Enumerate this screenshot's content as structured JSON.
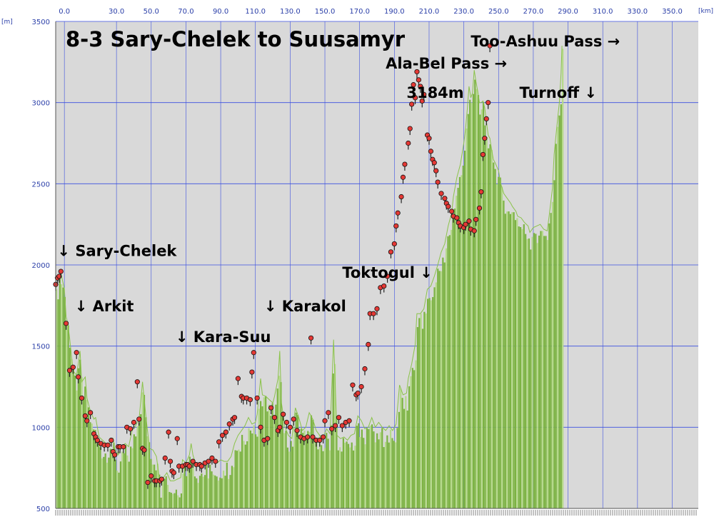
{
  "chart_data": {
    "type": "area",
    "title": "8-3 Sary-Chelek to Suusamyr",
    "x_unit": "[km]",
    "y_unit": "[m]",
    "xlim": [
      -5,
      365
    ],
    "ylim": [
      500,
      3500
    ],
    "x_ticks": [
      "0.0",
      "30.0",
      "50.0",
      "70.0",
      "90.0",
      "110.0",
      "130.0",
      "150.0",
      "170.0",
      "190.0",
      "210.0",
      "230.0",
      "250.0",
      "270.0",
      "290.0",
      "310.0",
      "330.0",
      "350.0"
    ],
    "x_tick_values": [
      0,
      30,
      50,
      70,
      90,
      110,
      130,
      150,
      170,
      190,
      210,
      230,
      250,
      270,
      290,
      310,
      330,
      350
    ],
    "y_ticks": [
      "500",
      "1000",
      "1500",
      "2000",
      "2500",
      "3000",
      "3500"
    ],
    "y_tick_values": [
      500,
      1000,
      1500,
      2000,
      2500,
      3000,
      3500
    ],
    "grid": true,
    "colors": {
      "fill": "#7cb342",
      "fill_light": "#b5d98a",
      "grid": "#3b4fe0",
      "plot_bg": "#d9d9d9",
      "marker": "#e53935"
    },
    "profile": [
      [
        -5,
        1850
      ],
      [
        -4,
        1900
      ],
      [
        -2,
        1950
      ],
      [
        0,
        1850
      ],
      [
        1,
        1680
      ],
      [
        2,
        1640
      ],
      [
        3,
        1550
      ],
      [
        5,
        1350
      ],
      [
        7,
        1320
      ],
      [
        8,
        1390
      ],
      [
        9,
        1470
      ],
      [
        10,
        1280
      ],
      [
        12,
        1310
      ],
      [
        13,
        1180
      ],
      [
        15,
        1100
      ],
      [
        17,
        1050
      ],
      [
        18,
        1060
      ],
      [
        20,
        940
      ],
      [
        22,
        920
      ],
      [
        24,
        900
      ],
      [
        26,
        900
      ],
      [
        28,
        930
      ],
      [
        29,
        870
      ],
      [
        31,
        830
      ],
      [
        33,
        880
      ],
      [
        35,
        900
      ],
      [
        37,
        880
      ],
      [
        39,
        980
      ],
      [
        41,
        1010
      ],
      [
        43,
        1050
      ],
      [
        45,
        1280
      ],
      [
        47,
        1060
      ],
      [
        49,
        870
      ],
      [
        51,
        860
      ],
      [
        53,
        820
      ],
      [
        55,
        660
      ],
      [
        57,
        690
      ],
      [
        59,
        720
      ],
      [
        61,
        670
      ],
      [
        63,
        670
      ],
      [
        65,
        680
      ],
      [
        67,
        690
      ],
      [
        68,
        800
      ],
      [
        70,
        780
      ],
      [
        72,
        830
      ],
      [
        73,
        900
      ],
      [
        74,
        830
      ],
      [
        76,
        760
      ],
      [
        78,
        780
      ],
      [
        80,
        770
      ],
      [
        82,
        780
      ],
      [
        84,
        790
      ],
      [
        86,
        800
      ],
      [
        88,
        780
      ],
      [
        90,
        800
      ],
      [
        92,
        790
      ],
      [
        94,
        790
      ],
      [
        96,
        820
      ],
      [
        98,
        900
      ],
      [
        100,
        950
      ],
      [
        102,
        980
      ],
      [
        104,
        1010
      ],
      [
        106,
        1060
      ],
      [
        108,
        1020
      ],
      [
        110,
        1030
      ],
      [
        111,
        1080
      ],
      [
        113,
        1300
      ],
      [
        114,
        1200
      ],
      [
        116,
        1190
      ],
      [
        118,
        1170
      ],
      [
        120,
        1150
      ],
      [
        121,
        1190
      ],
      [
        123,
        1300
      ],
      [
        124,
        1470
      ],
      [
        125,
        1150
      ],
      [
        127,
        1000
      ],
      [
        129,
        950
      ],
      [
        131,
        930
      ],
      [
        133,
        1120
      ],
      [
        135,
        1060
      ],
      [
        137,
        980
      ],
      [
        139,
        1000
      ],
      [
        141,
        1090
      ],
      [
        143,
        1050
      ],
      [
        145,
        980
      ],
      [
        147,
        950
      ],
      [
        149,
        940
      ],
      [
        151,
        990
      ],
      [
        153,
        960
      ],
      [
        155,
        1540
      ],
      [
        157,
        950
      ],
      [
        159,
        930
      ],
      [
        161,
        940
      ],
      [
        163,
        920
      ],
      [
        165,
        950
      ],
      [
        167,
        960
      ],
      [
        169,
        1070
      ],
      [
        171,
        1040
      ],
      [
        173,
        990
      ],
      [
        175,
        1000
      ],
      [
        177,
        1060
      ],
      [
        179,
        1000
      ],
      [
        181,
        1030
      ],
      [
        183,
        1000
      ],
      [
        185,
        980
      ],
      [
        187,
        1010
      ],
      [
        189,
        980
      ],
      [
        191,
        1020
      ],
      [
        193,
        1260
      ],
      [
        195,
        1200
      ],
      [
        197,
        1210
      ],
      [
        198,
        1300
      ],
      [
        200,
        1390
      ],
      [
        202,
        1510
      ],
      [
        203,
        1700
      ],
      [
        205,
        1700
      ],
      [
        207,
        1730
      ],
      [
        209,
        1850
      ],
      [
        211,
        1870
      ],
      [
        213,
        1930
      ],
      [
        215,
        2000
      ],
      [
        217,
        2080
      ],
      [
        219,
        2130
      ],
      [
        221,
        2240
      ],
      [
        223,
        2320
      ],
      [
        224,
        2420
      ],
      [
        226,
        2540
      ],
      [
        228,
        2620
      ],
      [
        230,
        2750
      ],
      [
        231,
        2840
      ],
      [
        232,
        2960
      ],
      [
        233,
        3100
      ],
      [
        234,
        3030
      ],
      [
        235,
        3060
      ],
      [
        236,
        3200
      ],
      [
        237,
        3130
      ],
      [
        238,
        3070
      ],
      [
        239,
        3000
      ],
      [
        240,
        3000
      ],
      [
        241,
        3010
      ],
      [
        242,
        2970
      ],
      [
        244,
        2800
      ],
      [
        245,
        2780
      ],
      [
        246,
        2710
      ],
      [
        247,
        2650
      ],
      [
        248,
        2630
      ],
      [
        250,
        2580
      ],
      [
        251,
        2510
      ],
      [
        253,
        2440
      ],
      [
        255,
        2410
      ],
      [
        257,
        2380
      ],
      [
        258,
        2360
      ],
      [
        260,
        2330
      ],
      [
        261,
        2300
      ],
      [
        263,
        2290
      ],
      [
        265,
        2260
      ],
      [
        267,
        2240
      ],
      [
        268,
        2200
      ],
      [
        270,
        2230
      ],
      [
        272,
        2240
      ],
      [
        274,
        2250
      ],
      [
        276,
        2220
      ],
      [
        278,
        2210
      ],
      [
        279,
        2290
      ],
      [
        281,
        2470
      ],
      [
        282,
        2680
      ],
      [
        283,
        2790
      ],
      [
        284,
        2900
      ],
      [
        285,
        3000
      ],
      [
        286,
        3180
      ],
      [
        286.5,
        3350
      ]
    ],
    "markers": [
      [
        -5,
        1880
      ],
      [
        -4,
        1920
      ],
      [
        -3,
        1930
      ],
      [
        -2,
        1960
      ],
      [
        1,
        1640
      ],
      [
        3,
        1350
      ],
      [
        5,
        1370
      ],
      [
        7,
        1460
      ],
      [
        8,
        1310
      ],
      [
        10,
        1180
      ],
      [
        12,
        1070
      ],
      [
        13,
        1040
      ],
      [
        15,
        1090
      ],
      [
        17,
        960
      ],
      [
        18,
        940
      ],
      [
        19,
        920
      ],
      [
        21,
        900
      ],
      [
        23,
        890
      ],
      [
        25,
        890
      ],
      [
        27,
        920
      ],
      [
        28,
        850
      ],
      [
        29,
        830
      ],
      [
        31,
        880
      ],
      [
        32,
        880
      ],
      [
        34,
        880
      ],
      [
        36,
        1000
      ],
      [
        38,
        990
      ],
      [
        40,
        1030
      ],
      [
        42,
        1280
      ],
      [
        43,
        1050
      ],
      [
        45,
        870
      ],
      [
        46,
        860
      ],
      [
        48,
        660
      ],
      [
        50,
        700
      ],
      [
        52,
        670
      ],
      [
        53,
        670
      ],
      [
        55,
        670
      ],
      [
        56,
        680
      ],
      [
        58,
        810
      ],
      [
        60,
        970
      ],
      [
        61,
        790
      ],
      [
        62,
        730
      ],
      [
        63,
        720
      ],
      [
        65,
        930
      ],
      [
        66,
        760
      ],
      [
        68,
        760
      ],
      [
        70,
        770
      ],
      [
        71,
        770
      ],
      [
        72,
        760
      ],
      [
        74,
        790
      ],
      [
        76,
        770
      ],
      [
        78,
        770
      ],
      [
        79,
        760
      ],
      [
        81,
        780
      ],
      [
        83,
        790
      ],
      [
        85,
        810
      ],
      [
        87,
        790
      ],
      [
        89,
        910
      ],
      [
        91,
        950
      ],
      [
        93,
        970
      ],
      [
        95,
        1020
      ],
      [
        97,
        1050
      ],
      [
        98,
        1060
      ],
      [
        100,
        1300
      ],
      [
        102,
        1190
      ],
      [
        103,
        1180
      ],
      [
        105,
        1180
      ],
      [
        107,
        1170
      ],
      [
        108,
        1340
      ],
      [
        109,
        1460
      ],
      [
        111,
        1180
      ],
      [
        113,
        1000
      ],
      [
        115,
        920
      ],
      [
        117,
        930
      ],
      [
        119,
        1120
      ],
      [
        121,
        1060
      ],
      [
        123,
        980
      ],
      [
        124,
        1000
      ],
      [
        126,
        1080
      ],
      [
        128,
        1030
      ],
      [
        130,
        1000
      ],
      [
        132,
        1050
      ],
      [
        134,
        980
      ],
      [
        136,
        940
      ],
      [
        138,
        930
      ],
      [
        140,
        940
      ],
      [
        142,
        1550
      ],
      [
        143,
        940
      ],
      [
        145,
        920
      ],
      [
        147,
        920
      ],
      [
        149,
        940
      ],
      [
        150,
        1040
      ],
      [
        152,
        1090
      ],
      [
        154,
        990
      ],
      [
        156,
        1010
      ],
      [
        158,
        1060
      ],
      [
        160,
        1010
      ],
      [
        162,
        1030
      ],
      [
        164,
        1040
      ],
      [
        166,
        1260
      ],
      [
        168,
        1200
      ],
      [
        169,
        1210
      ],
      [
        171,
        1250
      ],
      [
        173,
        1360
      ],
      [
        175,
        1510
      ],
      [
        176,
        1700
      ],
      [
        178,
        1700
      ],
      [
        180,
        1730
      ],
      [
        182,
        1860
      ],
      [
        184,
        1870
      ],
      [
        186,
        1930
      ],
      [
        188,
        2080
      ],
      [
        190,
        2130
      ],
      [
        191,
        2240
      ],
      [
        192,
        2320
      ],
      [
        194,
        2420
      ],
      [
        195,
        2540
      ],
      [
        196,
        2620
      ],
      [
        198,
        2750
      ],
      [
        199,
        2840
      ],
      [
        200,
        2990
      ],
      [
        201,
        3110
      ],
      [
        202,
        3030
      ],
      [
        203,
        3190
      ],
      [
        204,
        3140
      ],
      [
        205,
        3100
      ],
      [
        206,
        3010
      ],
      [
        207,
        3050
      ],
      [
        209,
        2800
      ],
      [
        210,
        2780
      ],
      [
        211,
        2700
      ],
      [
        212,
        2650
      ],
      [
        213,
        2630
      ],
      [
        214,
        2580
      ],
      [
        215,
        2510
      ],
      [
        217,
        2440
      ],
      [
        219,
        2410
      ],
      [
        220,
        2380
      ],
      [
        221,
        2360
      ],
      [
        223,
        2330
      ],
      [
        224,
        2300
      ],
      [
        226,
        2290
      ],
      [
        227,
        2260
      ],
      [
        228,
        2240
      ],
      [
        230,
        2230
      ],
      [
        231,
        2250
      ],
      [
        233,
        2270
      ],
      [
        234,
        2220
      ],
      [
        236,
        2210
      ],
      [
        237,
        2280
      ],
      [
        239,
        2350
      ],
      [
        240,
        2450
      ],
      [
        241,
        2680
      ],
      [
        242,
        2780
      ],
      [
        243,
        2900
      ],
      [
        244,
        3000
      ],
      [
        245,
        3350
      ]
    ],
    "annotations": [
      {
        "text": "↓ Sary-Chelek",
        "x": -4,
        "y": 2055
      },
      {
        "text": "↓  Arkit",
        "x": 6,
        "y": 1715
      },
      {
        "text": "↓  Kara-Suu",
        "x": 64,
        "y": 1525
      },
      {
        "text": "↓  Karakol",
        "x": 115,
        "y": 1715
      },
      {
        "text": "Toktogul ↓",
        "x": 160,
        "y": 1920
      },
      {
        "text": "Ala-Bel Pass →",
        "x": 185,
        "y": 3210
      },
      {
        "text": "3184m",
        "x": 197,
        "y": 3030
      },
      {
        "text": "Too-Ashuu Pass →",
        "x": 234,
        "y": 3345
      },
      {
        "text": "Turnoff ↓",
        "x": 262,
        "y": 3030
      }
    ]
  }
}
